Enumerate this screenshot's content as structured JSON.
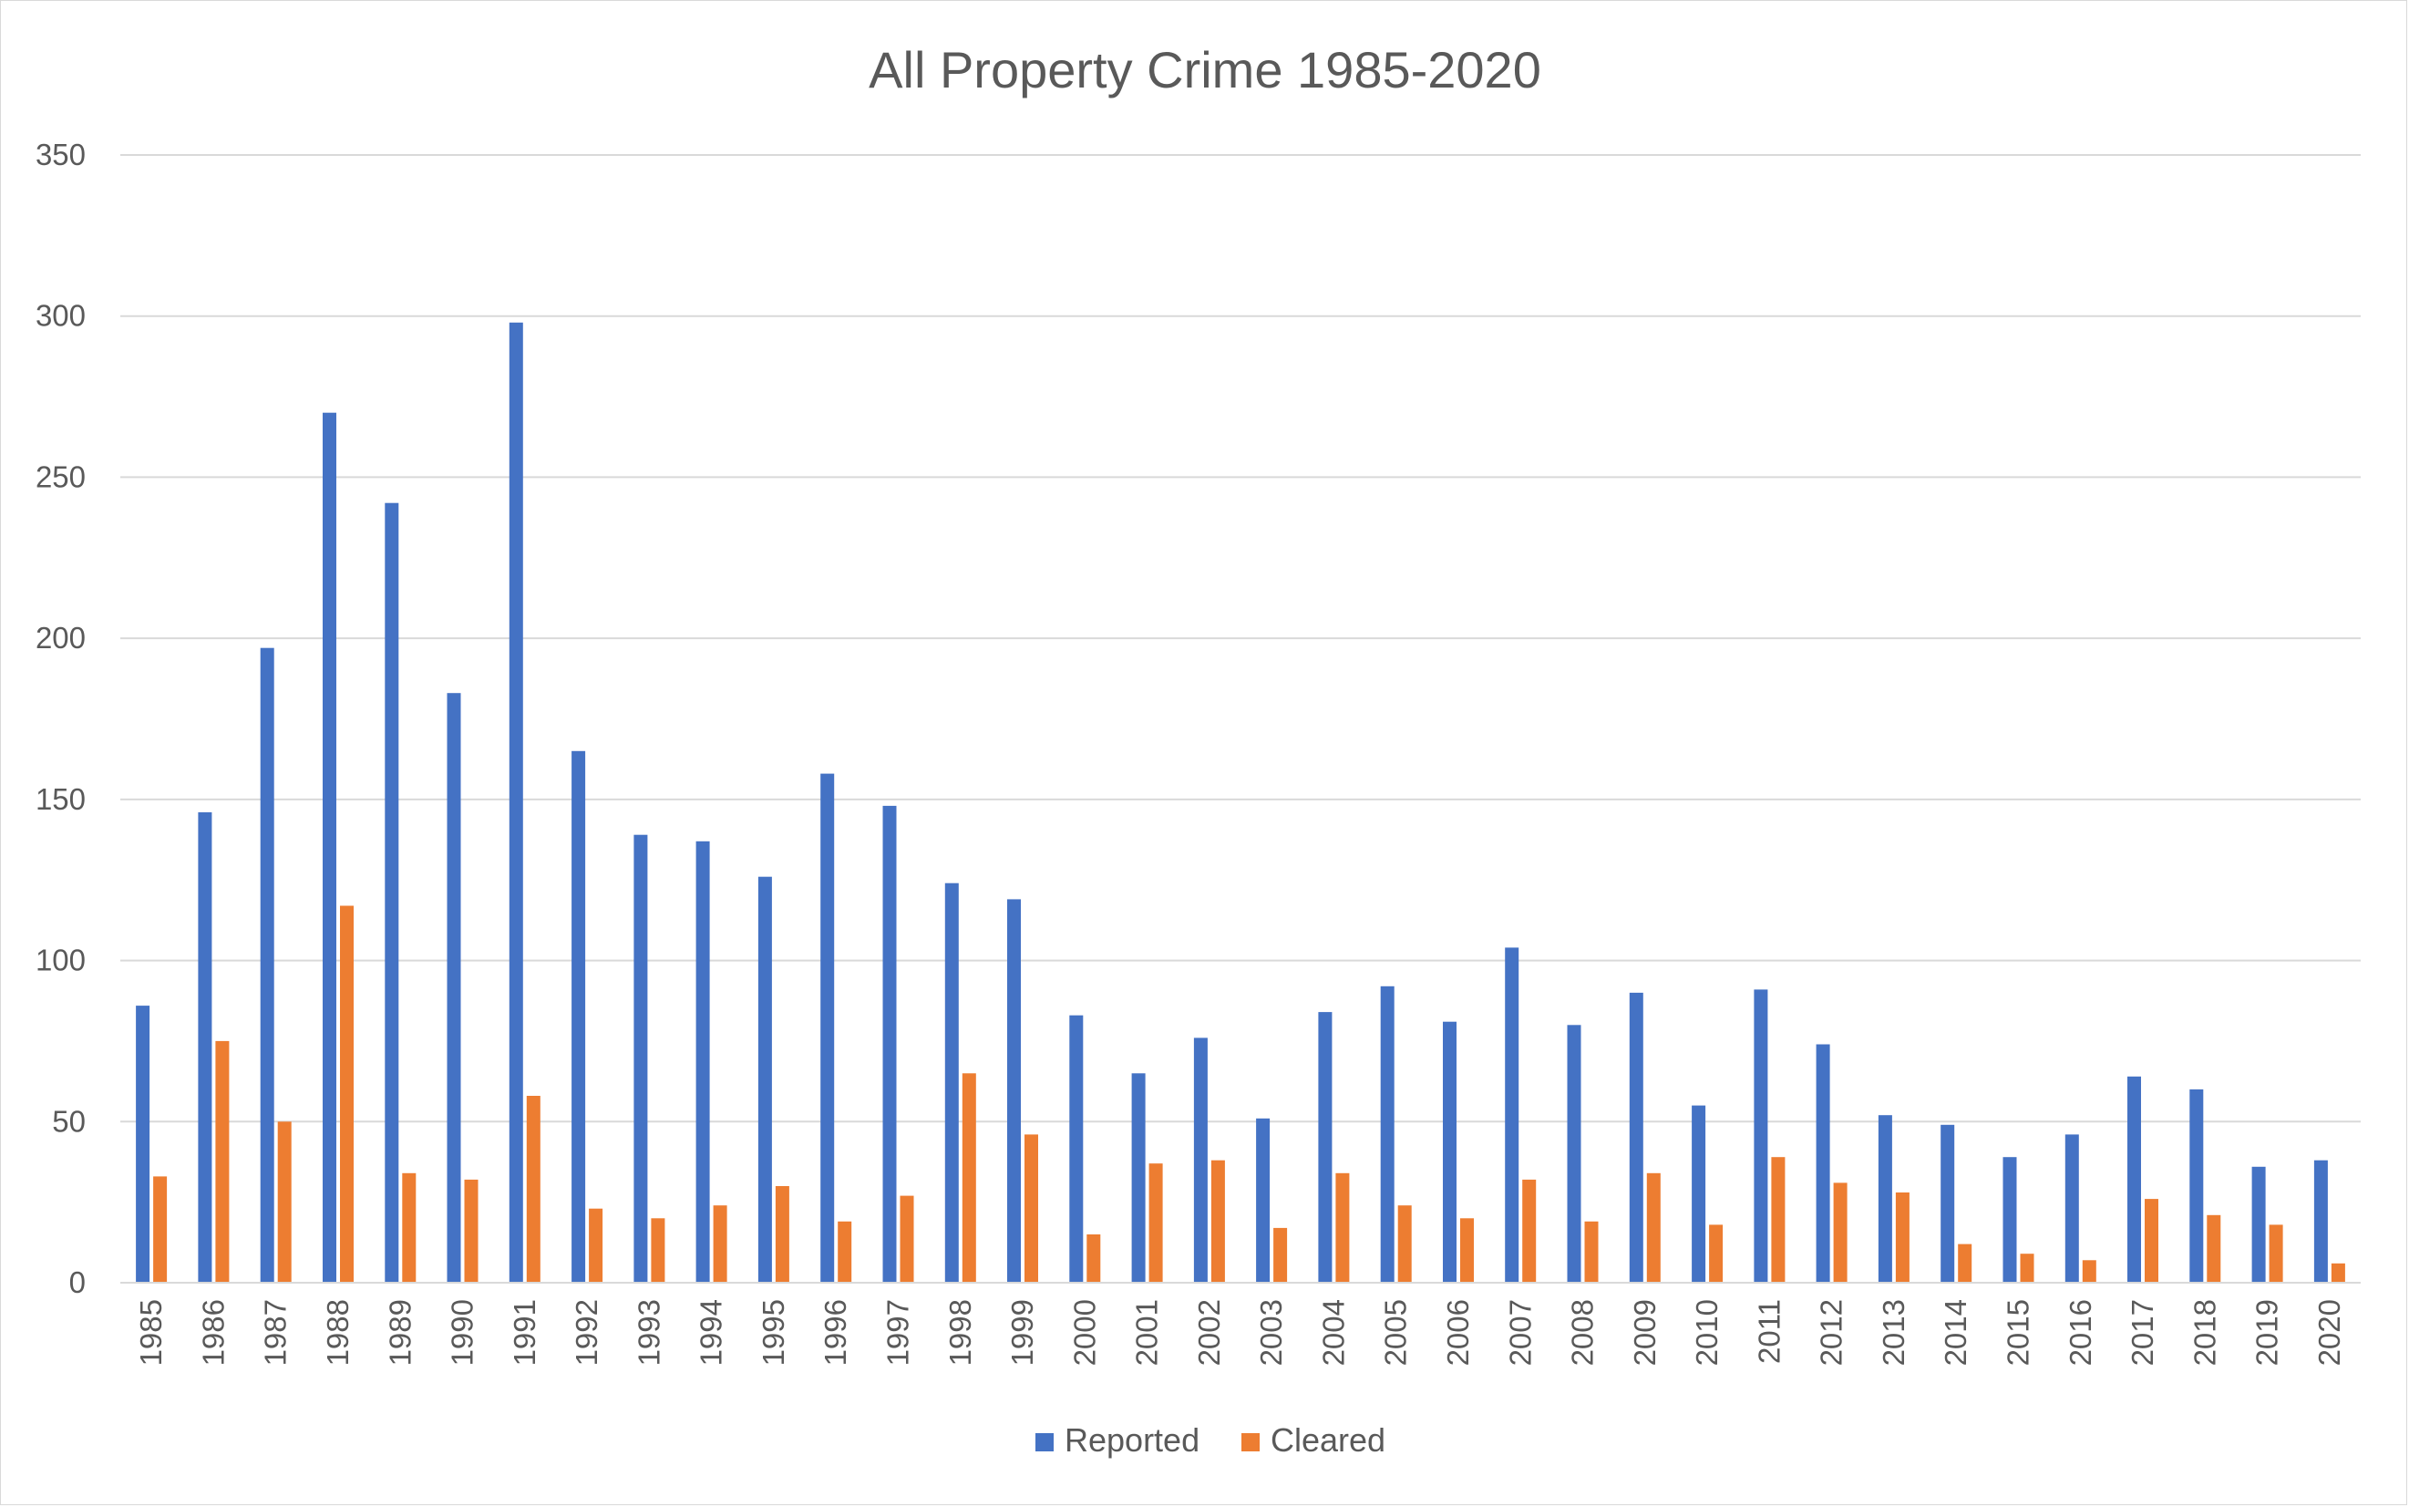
{
  "chart_data": {
    "type": "bar",
    "title": "All Property Crime 1985-2020",
    "xlabel": "",
    "ylabel": "",
    "ylim": [
      0,
      350
    ],
    "yticks": [
      0,
      50,
      100,
      150,
      200,
      250,
      300,
      350
    ],
    "grid": true,
    "legend_position": "bottom",
    "categories": [
      "1985",
      "1986",
      "1987",
      "1988",
      "1989",
      "1990",
      "1991",
      "1992",
      "1993",
      "1994",
      "1995",
      "1996",
      "1997",
      "1998",
      "1999",
      "2000",
      "2001",
      "2002",
      "2003",
      "2004",
      "2005",
      "2006",
      "2007",
      "2008",
      "2009",
      "2010",
      "2011",
      "2012",
      "2013",
      "2014",
      "2015",
      "2016",
      "2017",
      "2018",
      "2019",
      "2020"
    ],
    "series": [
      {
        "name": "Reported",
        "color": "#4472c4",
        "values": [
          86,
          146,
          197,
          270,
          242,
          183,
          298,
          165,
          139,
          137,
          126,
          158,
          148,
          124,
          119,
          83,
          65,
          76,
          51,
          84,
          92,
          81,
          104,
          80,
          90,
          55,
          91,
          74,
          52,
          49,
          39,
          46,
          64,
          60,
          36,
          38
        ]
      },
      {
        "name": "Cleared",
        "color": "#ed7d31",
        "values": [
          33,
          75,
          50,
          117,
          34,
          32,
          58,
          23,
          20,
          24,
          30,
          19,
          27,
          65,
          46,
          15,
          37,
          38,
          17,
          34,
          24,
          20,
          32,
          19,
          34,
          18,
          39,
          31,
          28,
          12,
          9,
          7,
          26,
          21,
          18,
          6
        ]
      }
    ]
  }
}
